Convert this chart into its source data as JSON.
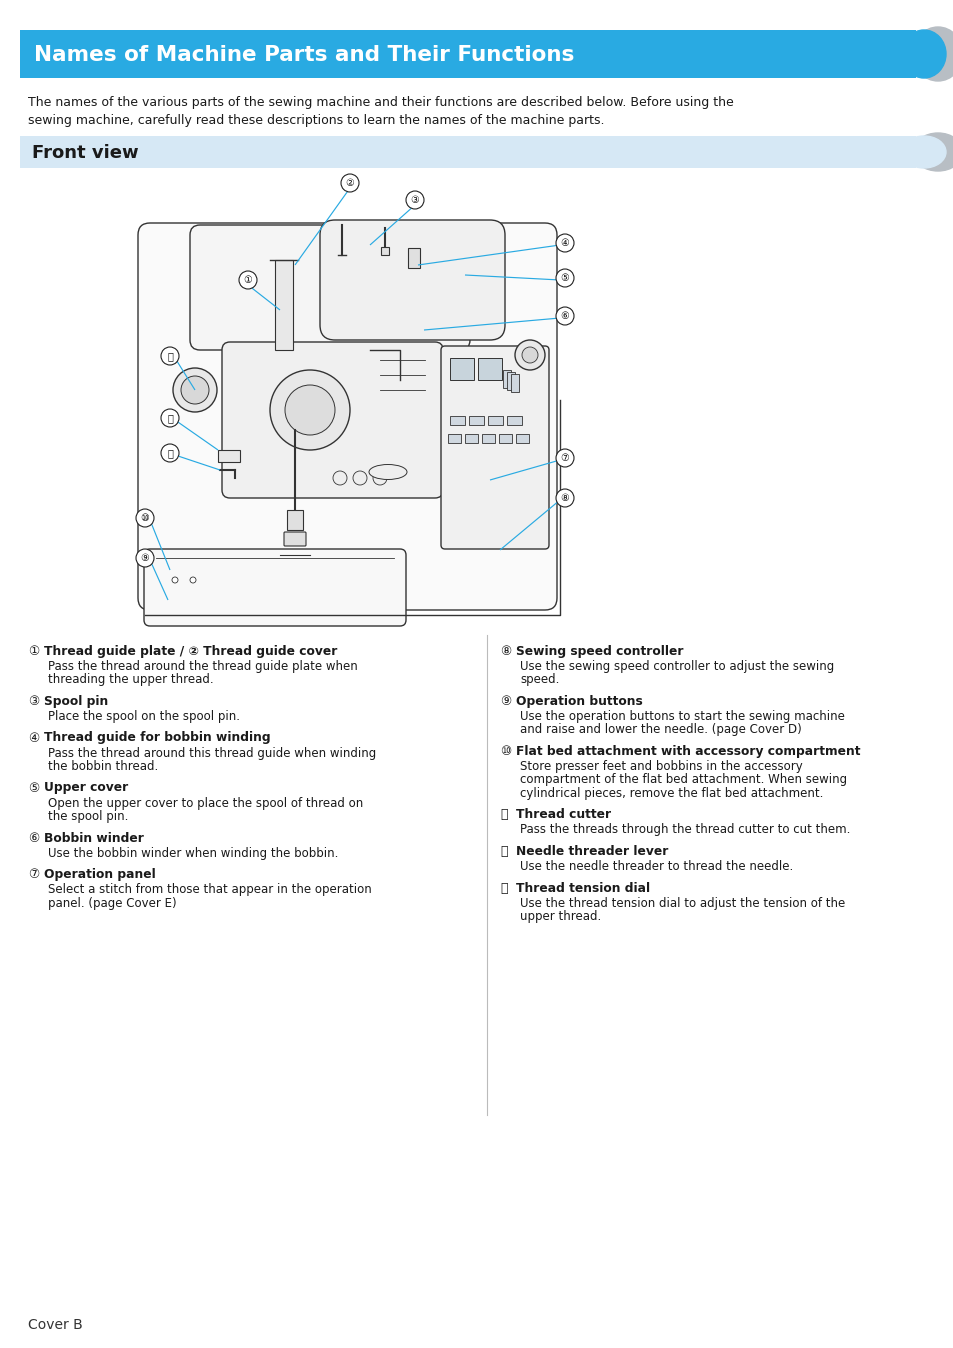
{
  "page_bg": "#ffffff",
  "header_bg": "#29aae2",
  "header_text": "Names of Machine Parts and Their Functions",
  "header_text_color": "#ffffff",
  "header_font_size": 15.5,
  "subheader_bg": "#d6e8f5",
  "subheader_text": "Front view",
  "subheader_text_color": "#1a1a1a",
  "subheader_font_size": 13,
  "intro_text": "The names of the various parts of the sewing machine and their functions are described below. Before using the\nsewing machine, carefully read these descriptions to learn the names of the machine parts.",
  "intro_font_size": 9.0,
  "parts_left": [
    {
      "num": "①",
      "bold": "Thread guide plate / ② Thread guide cover",
      "desc": "Pass the thread around the thread guide plate when\nthreading the upper thread."
    },
    {
      "num": "③",
      "bold": "Spool pin",
      "desc": "Place the spool on the spool pin."
    },
    {
      "num": "④",
      "bold": "Thread guide for bobbin winding",
      "desc": "Pass the thread around this thread guide when winding\nthe bobbin thread."
    },
    {
      "num": "⑤",
      "bold": "Upper cover",
      "desc": "Open the upper cover to place the spool of thread on\nthe spool pin."
    },
    {
      "num": "⑥",
      "bold": "Bobbin winder",
      "desc": "Use the bobbin winder when winding the bobbin."
    },
    {
      "num": "⑦",
      "bold": "Operation panel",
      "desc": "Select a stitch from those that appear in the operation\npanel. (page Cover E)"
    }
  ],
  "parts_right": [
    {
      "num": "⑧",
      "bold": "Sewing speed controller",
      "desc": "Use the sewing speed controller to adjust the sewing\nspeed."
    },
    {
      "num": "⑨",
      "bold": "Operation buttons",
      "desc": "Use the operation buttons to start the sewing machine\nand raise and lower the needle. (page Cover D)"
    },
    {
      "num": "⑩",
      "bold": "Flat bed attachment with accessory compartment",
      "desc": "Store presser feet and bobbins in the accessory\ncompartment of the flat bed attachment. When sewing\ncylindrical pieces, remove the flat bed attachment."
    },
    {
      "num": "⑪",
      "bold": "Thread cutter",
      "desc": "Pass the threads through the thread cutter to cut them."
    },
    {
      "num": "⑫",
      "bold": "Needle threader lever",
      "desc": "Use the needle threader to thread the needle."
    },
    {
      "num": "⑬",
      "bold": "Thread tension dial",
      "desc": "Use the thread tension dial to adjust the tension of the\nupper thread."
    }
  ],
  "footer_text": "Cover B",
  "divider_color": "#bbbbbb",
  "accent_color": "#29aae2",
  "line_color": "#333333"
}
